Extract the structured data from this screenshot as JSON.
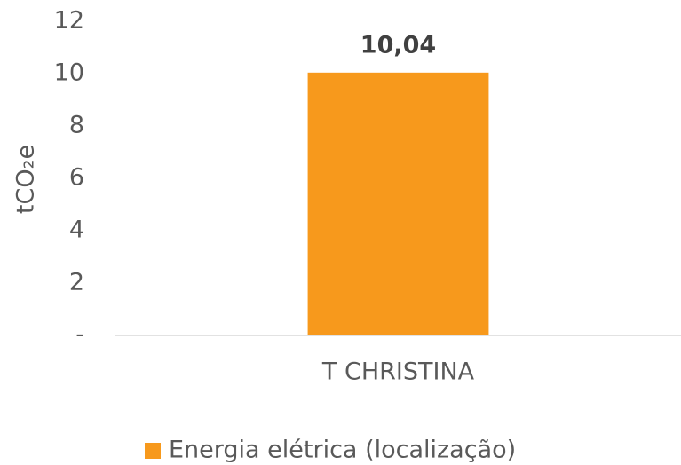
{
  "chart_data": {
    "type": "bar",
    "y_label": "tCO₂e",
    "categories": [
      "T CHRISTINA"
    ],
    "series": [
      {
        "name": "Energia elétrica (localização)",
        "color": "#f7991c",
        "values": [
          10.04
        ],
        "value_labels": [
          "10,04"
        ]
      }
    ],
    "ylim": [
      0,
      12
    ],
    "yticks": [
      {
        "value": 0,
        "label": "-"
      },
      2,
      4,
      6,
      8,
      10,
      12
    ],
    "grid": false,
    "legend": "bottom"
  }
}
